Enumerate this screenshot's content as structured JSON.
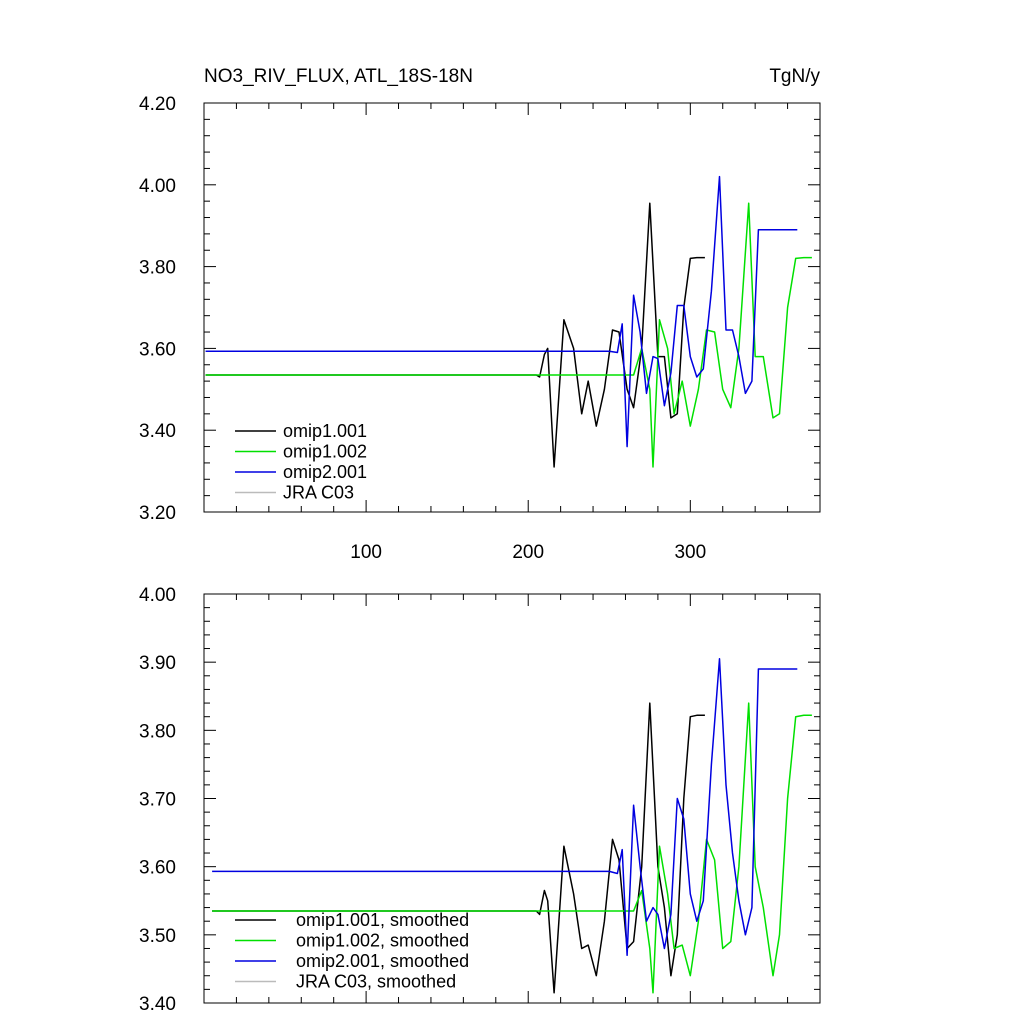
{
  "header": {
    "title": "NO3_RIV_FLUX, ATL_18S-18N",
    "units": "TgN/y"
  },
  "chart_data": [
    {
      "type": "line",
      "xlim": [
        0,
        380
      ],
      "ylim": [
        3.2,
        4.2
      ],
      "xticks": [
        100,
        200,
        300
      ],
      "yticks": [
        3.2,
        3.4,
        3.6,
        3.8,
        4.0,
        4.2
      ],
      "ytick_labels": [
        "3.20",
        "3.40",
        "3.60",
        "3.80",
        "4.00",
        "4.20"
      ],
      "xtick_labels": [
        "100",
        "200",
        "300"
      ],
      "legend_position": "bottom-left",
      "series": [
        {
          "name": "omip1.001",
          "color": "#000000",
          "x": [
            1,
            205,
            207,
            210,
            212,
            216,
            222,
            228,
            233,
            237,
            242,
            247,
            252,
            256,
            261,
            265,
            270,
            275,
            280,
            284,
            288,
            292,
            296,
            300,
            304,
            309
          ],
          "y": [
            3.535,
            3.535,
            3.53,
            3.585,
            3.6,
            3.31,
            3.67,
            3.6,
            3.44,
            3.52,
            3.41,
            3.5,
            3.645,
            3.64,
            3.5,
            3.455,
            3.6,
            3.955,
            3.58,
            3.58,
            3.43,
            3.44,
            3.7,
            3.82,
            3.822,
            3.822
          ]
        },
        {
          "name": "omip1.002",
          "color": "#00e000",
          "x": [
            1,
            265,
            270,
            275,
            277,
            281,
            286,
            290,
            295,
            300,
            305,
            310,
            315,
            320,
            325,
            330,
            336,
            340,
            345,
            351,
            355,
            360,
            365,
            370,
            375
          ],
          "y": [
            3.535,
            3.535,
            3.6,
            3.5,
            3.31,
            3.67,
            3.6,
            3.44,
            3.52,
            3.41,
            3.5,
            3.645,
            3.64,
            3.5,
            3.455,
            3.6,
            3.955,
            3.58,
            3.58,
            3.43,
            3.44,
            3.7,
            3.82,
            3.822,
            3.822
          ]
        },
        {
          "name": "omip2.001",
          "color": "#0000e0",
          "x": [
            1,
            250,
            255,
            258,
            261,
            265,
            269,
            273,
            277,
            280,
            284,
            288,
            292,
            296,
            300,
            304,
            308,
            313,
            318,
            322,
            326,
            330,
            334,
            338,
            342,
            347,
            352,
            356,
            361,
            366
          ],
          "y": [
            3.593,
            3.593,
            3.59,
            3.66,
            3.36,
            3.73,
            3.64,
            3.49,
            3.58,
            3.575,
            3.46,
            3.54,
            3.705,
            3.705,
            3.58,
            3.53,
            3.55,
            3.74,
            4.02,
            3.645,
            3.645,
            3.58,
            3.49,
            3.52,
            3.89,
            3.89,
            3.89,
            3.89,
            3.89,
            3.89
          ]
        },
        {
          "name": "JRA C03",
          "color": "#bbbbbb",
          "x": [],
          "y": []
        }
      ]
    },
    {
      "type": "line",
      "xlim": [
        0,
        380
      ],
      "ylim": [
        3.4,
        4.0
      ],
      "xticks": [
        100,
        200,
        300
      ],
      "yticks": [
        3.4,
        3.5,
        3.6,
        3.7,
        3.8,
        3.9,
        4.0
      ],
      "ytick_labels": [
        "3.40",
        "3.50",
        "3.60",
        "3.70",
        "3.80",
        "3.90",
        "4.00"
      ],
      "legend_position": "bottom-left",
      "series": [
        {
          "name": "omip1.001, smoothed",
          "color": "#000000",
          "x": [
            5,
            205,
            207,
            210,
            212,
            216,
            222,
            228,
            233,
            237,
            242,
            247,
            252,
            256,
            261,
            265,
            270,
            275,
            280,
            284,
            288,
            292,
            296,
            300,
            304,
            309
          ],
          "y": [
            3.535,
            3.535,
            3.53,
            3.565,
            3.55,
            3.415,
            3.63,
            3.56,
            3.48,
            3.485,
            3.44,
            3.52,
            3.64,
            3.61,
            3.48,
            3.49,
            3.6,
            3.84,
            3.6,
            3.54,
            3.44,
            3.5,
            3.7,
            3.82,
            3.822,
            3.822
          ]
        },
        {
          "name": "omip1.002, smoothed",
          "color": "#00e000",
          "x": [
            5,
            265,
            270,
            275,
            277,
            281,
            286,
            290,
            295,
            300,
            305,
            310,
            315,
            320,
            325,
            330,
            336,
            340,
            345,
            351,
            355,
            360,
            365,
            370,
            375
          ],
          "y": [
            3.535,
            3.535,
            3.565,
            3.48,
            3.415,
            3.63,
            3.56,
            3.48,
            3.485,
            3.44,
            3.52,
            3.64,
            3.61,
            3.48,
            3.49,
            3.6,
            3.84,
            3.6,
            3.54,
            3.44,
            3.5,
            3.7,
            3.82,
            3.822,
            3.822
          ]
        },
        {
          "name": "omip2.001, smoothed",
          "color": "#0000e0",
          "x": [
            5,
            250,
            255,
            258,
            261,
            265,
            269,
            273,
            277,
            280,
            284,
            288,
            292,
            296,
            300,
            304,
            308,
            313,
            318,
            322,
            326,
            330,
            334,
            338,
            342,
            347,
            352,
            356,
            361,
            366
          ],
          "y": [
            3.593,
            3.593,
            3.59,
            3.625,
            3.47,
            3.69,
            3.6,
            3.52,
            3.54,
            3.53,
            3.48,
            3.53,
            3.7,
            3.67,
            3.56,
            3.52,
            3.55,
            3.75,
            3.905,
            3.72,
            3.62,
            3.55,
            3.5,
            3.54,
            3.89,
            3.89,
            3.89,
            3.89,
            3.89,
            3.89
          ]
        },
        {
          "name": "JRA C03, smoothed",
          "color": "#bbbbbb",
          "x": [],
          "y": []
        }
      ]
    }
  ]
}
